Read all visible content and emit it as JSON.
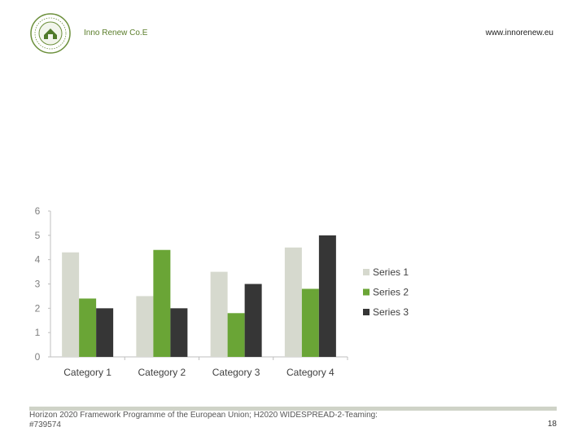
{
  "header": {
    "org_name": "Inno Renew Co.E",
    "url": "www.innorenew.eu"
  },
  "colors": {
    "series1": "#d6d9ce",
    "series2": "#6aa536",
    "series3": "#363636",
    "axis": "#bfbfbf",
    "tick_text": "#7f7f7f",
    "label_text": "#404040",
    "accent": "#5a7d2a"
  },
  "chart_data": {
    "type": "bar",
    "title": "",
    "xlabel": "",
    "ylabel": "",
    "categories": [
      "Category 1",
      "Category 2",
      "Category 3",
      "Category 4"
    ],
    "series": [
      {
        "name": "Series 1",
        "values": [
          4.3,
          2.5,
          3.5,
          4.5
        ]
      },
      {
        "name": "Series 2",
        "values": [
          2.4,
          4.4,
          1.8,
          2.8
        ]
      },
      {
        "name": "Series 3",
        "values": [
          2,
          2,
          3,
          5
        ]
      }
    ],
    "ylim": [
      0,
      6
    ],
    "yticks": [
      "0",
      "1",
      "2",
      "3",
      "4",
      "5",
      "6"
    ],
    "grid": false,
    "legend_position": "right"
  },
  "footer": {
    "text": "Horizon 2020 Framework Programme of the European Union; H2020 WIDESPREAD-2-Teaming: #739574",
    "page_number": "18"
  }
}
